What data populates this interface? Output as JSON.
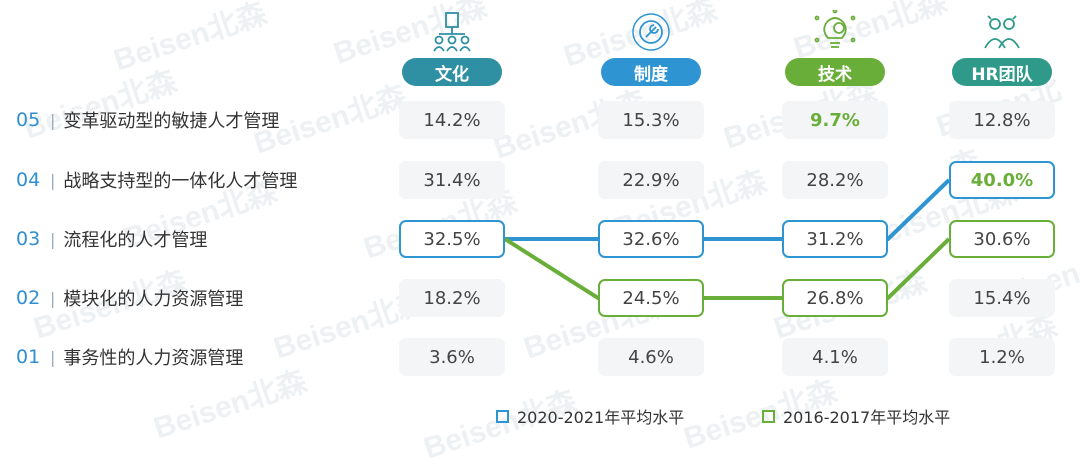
{
  "chart_data": {
    "type": "table",
    "columns": [
      {
        "label": "文化",
        "color": "#2f8fa3",
        "icon": "people-org-icon"
      },
      {
        "label": "制度",
        "color": "#2f95d2",
        "icon": "gear-wrench-icon"
      },
      {
        "label": "技术",
        "color": "#6aae3a",
        "icon": "lightbulb-gear-icon"
      },
      {
        "label": "HR团队",
        "color": "#2f9a8a",
        "icon": "team-people-icon"
      }
    ],
    "rows": [
      {
        "num": "05",
        "label": "变革驱动型的敏捷人才管理",
        "values": [
          "14.2%",
          "15.3%",
          "9.7%",
          "12.8%"
        ]
      },
      {
        "num": "04",
        "label": "战略支持型的一体化人才管理",
        "values": [
          "31.4%",
          "22.9%",
          "28.2%",
          "40.0%"
        ]
      },
      {
        "num": "03",
        "label": "流程化的人才管理",
        "values": [
          "32.5%",
          "32.6%",
          "31.2%",
          "30.6%"
        ]
      },
      {
        "num": "02",
        "label": "模块化的人力资源管理",
        "values": [
          "18.2%",
          "24.5%",
          "26.8%",
          "15.4%"
        ]
      },
      {
        "num": "01",
        "label": "事务性的人力资源管理",
        "values": [
          "3.6%",
          "4.6%",
          "4.1%",
          "1.2%"
        ]
      }
    ],
    "series": [
      {
        "name": "2020-2021年平均水平",
        "color": "#2f95d2",
        "path_rows": [
          "03",
          "03",
          "03",
          "04"
        ]
      },
      {
        "name": "2016-2017年平均水平",
        "color": "#6aae3a",
        "path_rows": [
          "03",
          "02",
          "02",
          "03"
        ]
      }
    ],
    "bold_cells": [
      [
        "05",
        2
      ],
      [
        "04",
        3
      ]
    ],
    "watermark": "Beisen北森"
  }
}
